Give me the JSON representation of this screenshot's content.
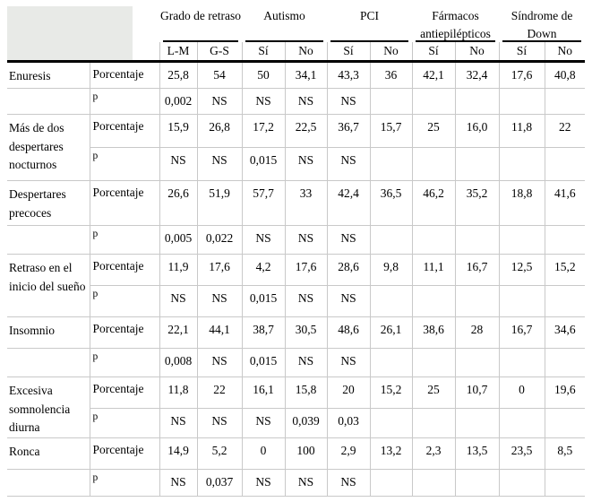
{
  "table": {
    "corner_label": "",
    "groups": [
      {
        "label": "Grado de retraso",
        "cols": [
          "L-M",
          "G-S"
        ]
      },
      {
        "label": "Autismo",
        "cols": [
          "Sí",
          "No"
        ]
      },
      {
        "label": "PCI",
        "cols": [
          "Sí",
          "No"
        ]
      },
      {
        "label": "Fármacos antiepilépticos",
        "cols": [
          "Sí",
          "No"
        ]
      },
      {
        "label": "Síndrome de Down",
        "cols": [
          "Sí",
          "No"
        ]
      }
    ],
    "row_labels": {
      "percent": "Porcentaje",
      "p": "p"
    },
    "rows": [
      {
        "condition": "Enuresis",
        "span": false,
        "porcentaje": [
          "25,8",
          "54",
          "50",
          "34,1",
          "43,3",
          "36",
          "42,1",
          "32,4",
          "17,6",
          "40,8"
        ],
        "p": [
          "0,002",
          "NS",
          "NS",
          "NS",
          "NS",
          "",
          "",
          "",
          "",
          ""
        ]
      },
      {
        "condition": "Más de dos despertares nocturnos",
        "span": true,
        "porcentaje": [
          "15,9",
          "26,8",
          "17,2",
          "22,5",
          "36,7",
          "15,7",
          "25",
          "16,0",
          "11,8",
          "22"
        ],
        "p": [
          "NS",
          "NS",
          "0,015",
          "NS",
          "NS",
          "",
          "",
          "",
          "",
          ""
        ]
      },
      {
        "condition": "Despertares precoces",
        "span": false,
        "porcentaje": [
          "26,6",
          "51,9",
          "57,7",
          "33",
          "42,4",
          "36,5",
          "46,2",
          "35,2",
          "18,8",
          "41,6"
        ],
        "p": [
          "0,005",
          "0,022",
          "NS",
          "NS",
          "NS",
          "",
          "",
          "",
          "",
          ""
        ]
      },
      {
        "condition": "Retraso en el inicio del sueño",
        "span": true,
        "porcentaje": [
          "11,9",
          "17,6",
          "4,2",
          "17,6",
          "28,6",
          "9,8",
          "11,1",
          "16,7",
          "12,5",
          "15,2"
        ],
        "p": [
          "NS",
          "NS",
          "0,015",
          "NS",
          "NS",
          "",
          "",
          "",
          "",
          ""
        ]
      },
      {
        "condition": "Insomnio",
        "span": false,
        "porcentaje": [
          "22,1",
          "44,1",
          "38,7",
          "30,5",
          "48,6",
          "26,1",
          "38,6",
          "28",
          "16,7",
          "34,6"
        ],
        "p": [
          "0,008",
          "NS",
          "0,015",
          "NS",
          "NS",
          "",
          "",
          "",
          "",
          ""
        ]
      },
      {
        "condition": "Excesiva somnolencia diurna",
        "span": true,
        "porcentaje": [
          "11,8",
          "22",
          "16,1",
          "15,8",
          "20",
          "15,2",
          "25",
          "10,7",
          "0",
          "19,6"
        ],
        "p": [
          "NS",
          "NS",
          "NS",
          "0,039",
          "0,03",
          "",
          "",
          "",
          "",
          ""
        ]
      },
      {
        "condition": "Ronca",
        "span": false,
        "porcentaje": [
          "14,9",
          "5,2",
          "0",
          "100",
          "2,9",
          "13,2",
          "2,3",
          "13,5",
          "23,5",
          "8,5"
        ],
        "p": [
          "NS",
          "0,037",
          "NS",
          "NS",
          "NS",
          "",
          "",
          "",
          "",
          ""
        ]
      }
    ],
    "colors": {
      "header_fill": "#e8eae7",
      "grid_line": "#c9c9c9",
      "rule": "#000000"
    }
  }
}
